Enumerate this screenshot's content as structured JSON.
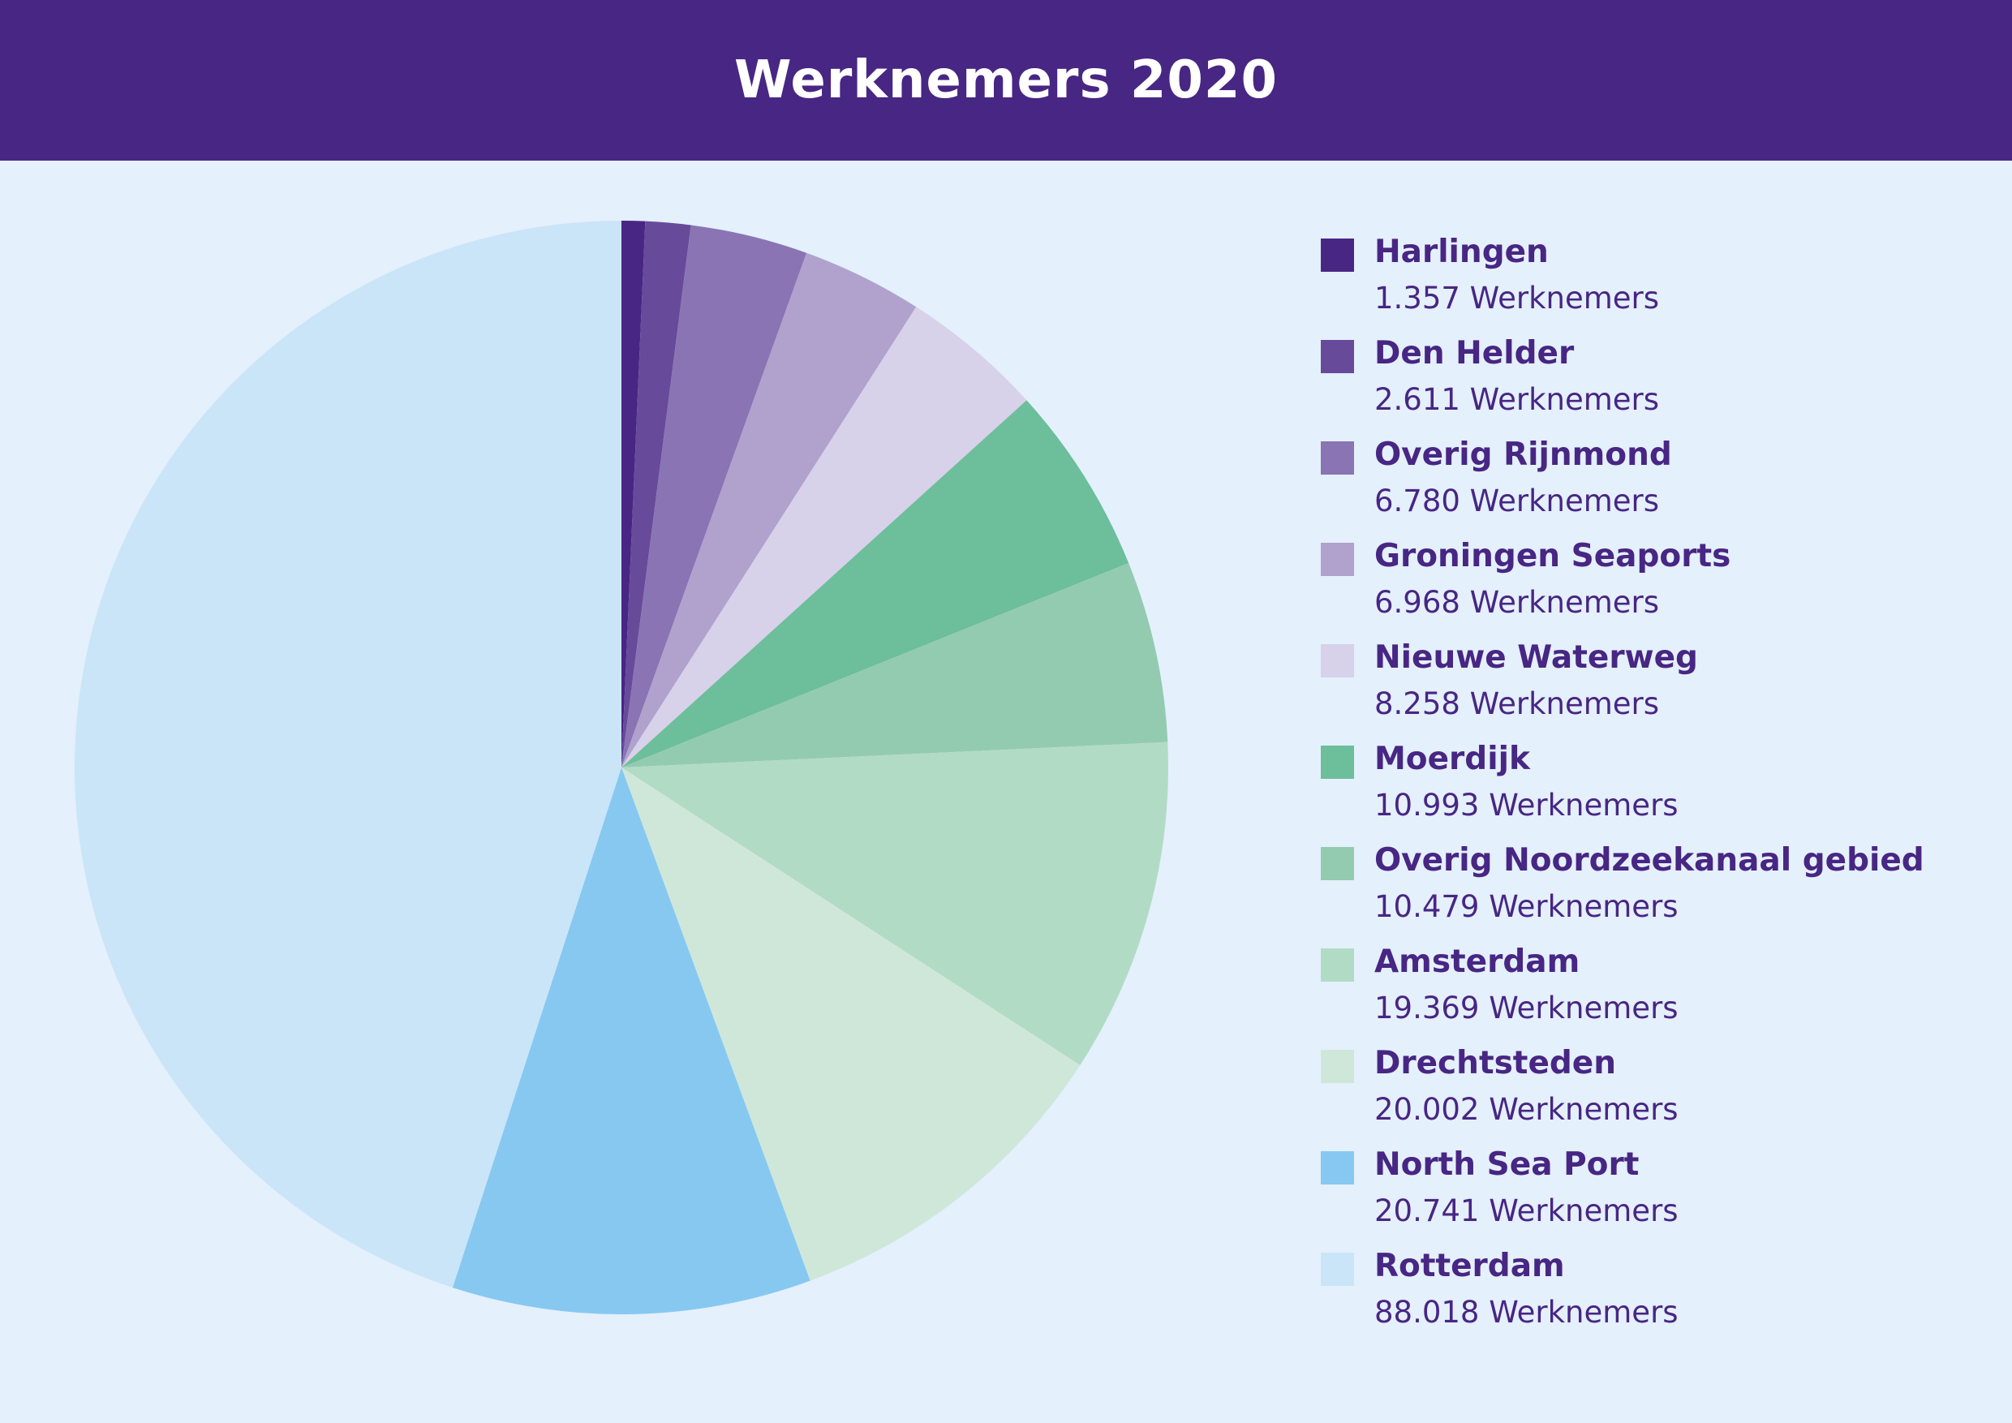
{
  "header": {
    "title": "Werknemers 2020"
  },
  "chart_data": {
    "type": "pie",
    "title": "Werknemers 2020",
    "legend_position": "right",
    "unit_label": "Werknemers",
    "slices": [
      {
        "name": "Harlingen",
        "value": 1357,
        "label": "1.357 Werknemers",
        "color": "#482683"
      },
      {
        "name": "Den Helder",
        "value": 2611,
        "label": "2.611 Werknemers",
        "color": "#684a9a"
      },
      {
        "name": "Overig Rijnmond",
        "value": 6780,
        "label": "6.780 Werknemers",
        "color": "#8a74b4"
      },
      {
        "name": "Groningen Seaports",
        "value": 6968,
        "label": "6.968 Werknemers",
        "color": "#b0a1cd"
      },
      {
        "name": "Nieuwe Waterweg",
        "value": 8258,
        "label": "8.258 Werknemers",
        "color": "#d7d1e9"
      },
      {
        "name": "Moerdijk",
        "value": 10993,
        "label": "10.993 Werknemers",
        "color": "#6dbe9b"
      },
      {
        "name": "Overig Noordzeekanaal gebied",
        "value": 10479,
        "label": "10.479 Werknemers",
        "color": "#93cbb0"
      },
      {
        "name": "Amsterdam",
        "value": 19369,
        "label": "19.369 Werknemers",
        "color": "#b2dbc6"
      },
      {
        "name": "Drechtsteden",
        "value": 20002,
        "label": "20.002 Werknemers",
        "color": "#cfe7d9"
      },
      {
        "name": "North Sea Port",
        "value": 20741,
        "label": "20.741 Werknemers",
        "color": "#87c8f1"
      },
      {
        "name": "Rotterdam",
        "value": 88018,
        "label": "88.018 Werknemers",
        "color": "#cae5f8"
      }
    ]
  }
}
